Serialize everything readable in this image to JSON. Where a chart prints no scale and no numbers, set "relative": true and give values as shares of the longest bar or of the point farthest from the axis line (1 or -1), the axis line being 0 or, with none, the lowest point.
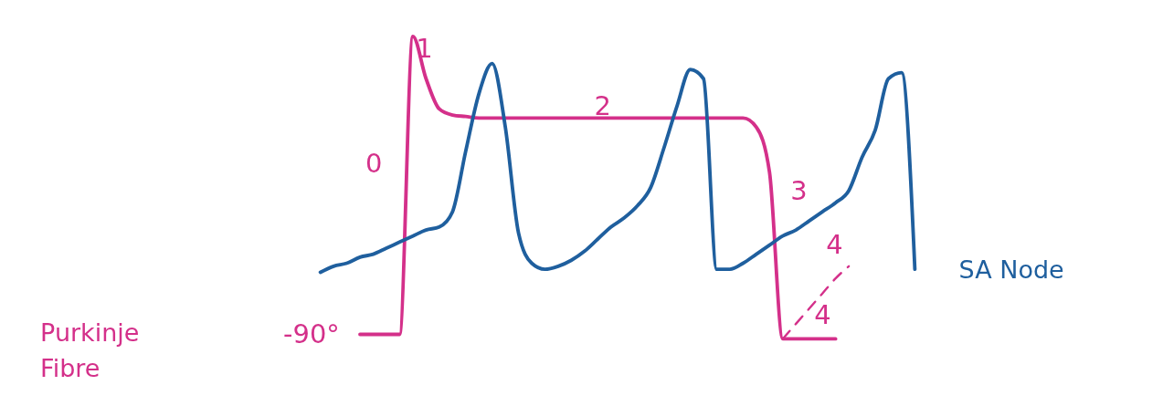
{
  "chart_data": {
    "type": "line",
    "relative": true,
    "categories": [
      null,
      null,
      null,
      null,
      null,
      null,
      null,
      null,
      null,
      null,
      null,
      null,
      null,
      null,
      null,
      null,
      null,
      null,
      null,
      null,
      null,
      null,
      null,
      null,
      null,
      null,
      null,
      null,
      null,
      null,
      null,
      null,
      null,
      null,
      null,
      null,
      null,
      null,
      null,
      null,
      null,
      null,
      null,
      null,
      null,
      null
    ],
    "series": [
      {
        "name": "Purkinje Fibre",
        "color": "#d4308a",
        "values": [
          null,
          null,
          null,
          0.015,
          0.015,
          0.015,
          0.015,
          1,
          0.86,
          0.76,
          0.74,
          0.735,
          0.73,
          0.73,
          0.73,
          0.73,
          0.73,
          0.73,
          0.73,
          0.73,
          0.73,
          0.73,
          0.73,
          0.73,
          0.73,
          0.73,
          0.73,
          0.73,
          0.73,
          0.73,
          0.73,
          0.73,
          0.73,
          0.7,
          0.55,
          0,
          0,
          0,
          0,
          0,
          null,
          null,
          null,
          null,
          null,
          null
        ]
      },
      {
        "name": "SA Node",
        "color": "#1f5f9e",
        "values": [
          0.22,
          0.24,
          0.25,
          0.27,
          0.28,
          0.3,
          0.32,
          0.34,
          0.36,
          0.37,
          0.42,
          0.62,
          0.81,
          0.91,
          0.7,
          0.35,
          0.25,
          0.23,
          0.24,
          0.26,
          0.29,
          0.33,
          0.37,
          0.4,
          0.44,
          0.5,
          0.63,
          0.77,
          0.89,
          0.86,
          0.23,
          0.23,
          0.25,
          0.28,
          0.31,
          0.34,
          0.36,
          0.39,
          0.42,
          0.45,
          0.49,
          0.6,
          0.69,
          0.86,
          0.88,
          0.23
        ]
      },
      {
        "color": "#d4308a",
        "line_style": "dashed",
        "values": [
          null,
          null,
          null,
          null,
          null,
          null,
          null,
          null,
          null,
          null,
          null,
          null,
          null,
          null,
          null,
          null,
          null,
          null,
          null,
          null,
          null,
          null,
          null,
          null,
          null,
          null,
          null,
          null,
          null,
          null,
          null,
          null,
          null,
          null,
          null,
          0,
          0.05,
          0.1,
          0.15,
          0.2,
          0.24,
          null,
          null,
          null,
          null,
          null
        ]
      }
    ],
    "annotations": [
      "0",
      "1",
      "2",
      "3",
      "4",
      "4",
      "-90°"
    ]
  }
}
